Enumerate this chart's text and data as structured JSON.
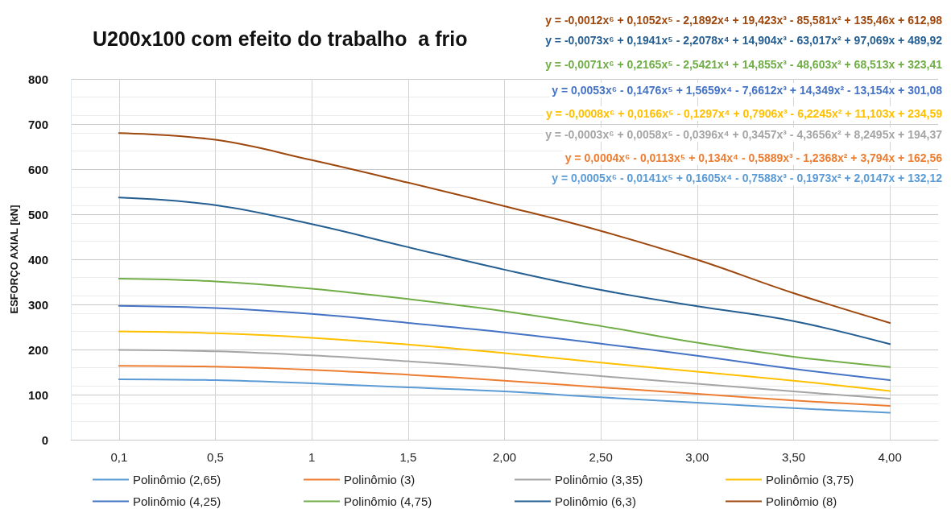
{
  "chart_data": {
    "type": "line",
    "title": "U200x100 com efeito do trabalho  a frio",
    "ylabel": "ESFORÇO AXIAL [kN]",
    "categories": [
      "0,1",
      "0,5",
      "1",
      "1,5",
      "2,00",
      "2,50",
      "3,00",
      "3,50",
      "4,00"
    ],
    "series": [
      {
        "name": "Polinômio (2,65)",
        "color": "#5b9bd5",
        "values": [
          134,
          132,
          125,
          116,
          107,
          94,
          82,
          70,
          60
        ]
      },
      {
        "name": "Polinômio (3)",
        "color": "#ed7d31",
        "values": [
          164,
          162,
          155,
          144,
          131,
          116,
          102,
          87,
          75
        ]
      },
      {
        "name": "Polinômio (3,35)",
        "color": "#a5a5a5",
        "values": [
          199,
          196,
          187,
          174,
          159,
          141,
          124,
          107,
          91
        ]
      },
      {
        "name": "Polinômio (3,75)",
        "color": "#ffc000",
        "values": [
          240,
          236,
          226,
          211,
          192,
          171,
          151,
          131,
          108
        ]
      },
      {
        "name": "Polinômio (4,25)",
        "color": "#4472c4",
        "values": [
          297,
          292,
          279,
          259,
          238,
          213,
          186,
          157,
          132
        ]
      },
      {
        "name": "Polinômio (4,75)",
        "color": "#70ad47",
        "values": [
          357,
          351,
          335,
          312,
          285,
          252,
          215,
          184,
          161
        ]
      },
      {
        "name": "Polinômio (6,3)",
        "color": "#255e91",
        "values": [
          537,
          520,
          478,
          427,
          377,
          332,
          296,
          263,
          212
        ]
      },
      {
        "name": "Polinômio (8)",
        "color": "#9e480e",
        "values": [
          680,
          665,
          620,
          570,
          518,
          463,
          399,
          325,
          259
        ]
      }
    ],
    "annotations": [
      "y = -0,0012x⁶ + 0,1052x⁵ - 2,1892x⁴ + 19,423x³ - 85,581x² + 135,46x + 612,98",
      "y = -0,0073x⁶ + 0,1941x⁵ - 2,2078x⁴ + 14,904x³ - 63,017x² + 97,069x + 489,92",
      "y = -0,0071x⁶ + 0,2165x⁵ - 2,5421x⁴ + 14,855x³ - 48,603x² + 68,513x + 323,41",
      "y = 0,0053x⁶ - 0,1476x⁵ + 1,5659x⁴ - 7,6612x³ + 14,349x² - 13,154x + 301,08",
      "y = -0,0008x⁶ + 0,0166x⁵ - 0,1297x⁴ + 0,7906x³ - 6,2245x² + 11,103x + 234,59",
      "y = -0,0003x⁶ + 0,0058x⁵ - 0,0396x⁴ + 0,3457x³ - 4,3656x² + 8,2495x + 194,37",
      "y = 0,0004x⁶ - 0,0113x⁵ + 0,134x⁴ - 0,5889x³ - 1,2368x² + 3,794x + 162,56",
      "y = 0,0005x⁶ - 0,0141x⁵ + 0,1605x⁴ - 0,7588x³ - 0,1973x² + 2,0147x + 132,12"
    ],
    "ylim": [
      0,
      800
    ],
    "yticks": [
      0,
      100,
      200,
      300,
      400,
      500,
      600,
      700,
      800
    ],
    "grid": true,
    "legend": "bottom",
    "marker": "none",
    "line_style": "solid"
  }
}
